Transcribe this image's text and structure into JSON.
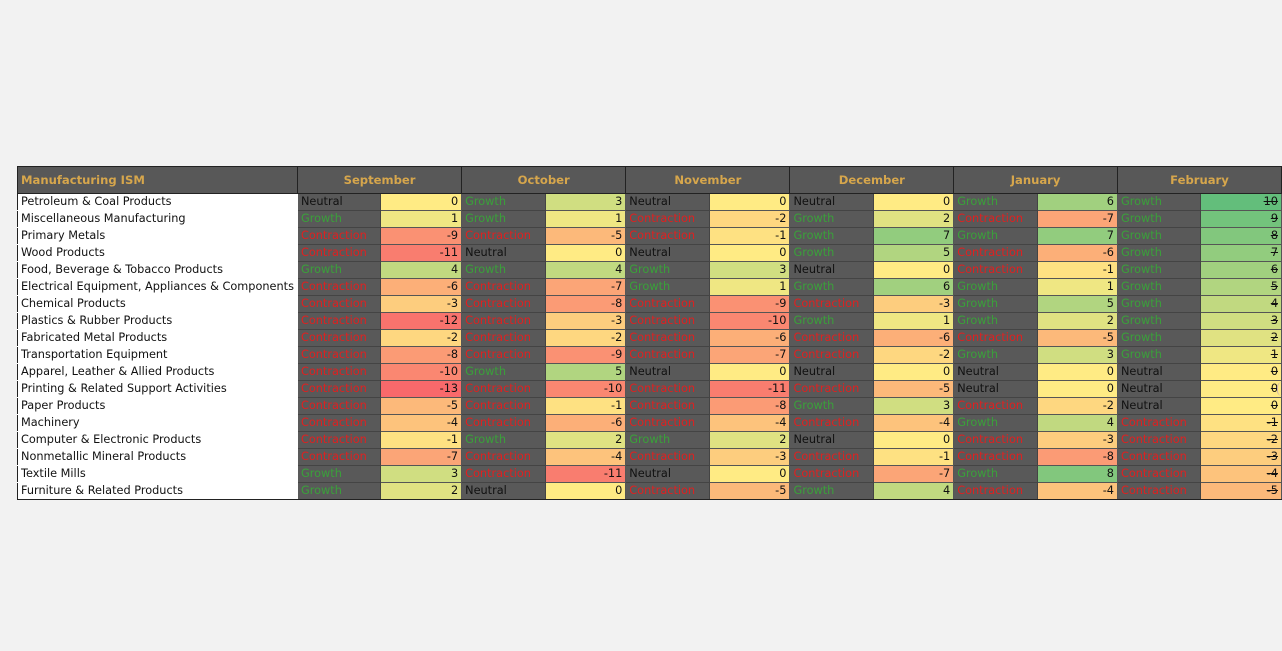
{
  "table": {
    "corner_header": "Manufacturing ISM",
    "months": [
      "September",
      "October",
      "November",
      "December",
      "January",
      "February"
    ],
    "rows": [
      {
        "name": "Petroleum & Coal Products",
        "cells": [
          [
            "Neutral",
            0
          ],
          [
            "Growth",
            3
          ],
          [
            "Neutral",
            0
          ],
          [
            "Neutral",
            0
          ],
          [
            "Growth",
            6
          ],
          [
            "Growth",
            10
          ]
        ]
      },
      {
        "name": "Miscellaneous Manufacturing",
        "cells": [
          [
            "Growth",
            1
          ],
          [
            "Growth",
            1
          ],
          [
            "Contraction",
            -2
          ],
          [
            "Growth",
            2
          ],
          [
            "Contraction",
            -7
          ],
          [
            "Growth",
            9
          ]
        ]
      },
      {
        "name": "Primary Metals",
        "cells": [
          [
            "Contraction",
            -9
          ],
          [
            "Contraction",
            -5
          ],
          [
            "Contraction",
            -1
          ],
          [
            "Growth",
            7
          ],
          [
            "Growth",
            7
          ],
          [
            "Growth",
            8
          ]
        ]
      },
      {
        "name": "Wood Products",
        "cells": [
          [
            "Contraction",
            -11
          ],
          [
            "Neutral",
            0
          ],
          [
            "Neutral",
            0
          ],
          [
            "Growth",
            5
          ],
          [
            "Contraction",
            -6
          ],
          [
            "Growth",
            7
          ]
        ]
      },
      {
        "name": "Food, Beverage & Tobacco Products",
        "cells": [
          [
            "Growth",
            4
          ],
          [
            "Growth",
            4
          ],
          [
            "Growth",
            3
          ],
          [
            "Neutral",
            0
          ],
          [
            "Contraction",
            -1
          ],
          [
            "Growth",
            6
          ]
        ]
      },
      {
        "name": "Electrical Equipment, Appliances & Components",
        "cells": [
          [
            "Contraction",
            -6
          ],
          [
            "Contraction",
            -7
          ],
          [
            "Growth",
            1
          ],
          [
            "Growth",
            6
          ],
          [
            "Growth",
            1
          ],
          [
            "Growth",
            5
          ]
        ]
      },
      {
        "name": "Chemical Products",
        "cells": [
          [
            "Contraction",
            -3
          ],
          [
            "Contraction",
            -8
          ],
          [
            "Contraction",
            -9
          ],
          [
            "Contraction",
            -3
          ],
          [
            "Growth",
            5
          ],
          [
            "Growth",
            4
          ]
        ]
      },
      {
        "name": "Plastics & Rubber Products",
        "cells": [
          [
            "Contraction",
            -12
          ],
          [
            "Contraction",
            -3
          ],
          [
            "Contraction",
            -10
          ],
          [
            "Growth",
            1
          ],
          [
            "Growth",
            2
          ],
          [
            "Growth",
            3
          ]
        ]
      },
      {
        "name": "Fabricated Metal Products",
        "cells": [
          [
            "Contraction",
            -2
          ],
          [
            "Contraction",
            -2
          ],
          [
            "Contraction",
            -6
          ],
          [
            "Contraction",
            -6
          ],
          [
            "Contraction",
            -5
          ],
          [
            "Growth",
            2
          ]
        ]
      },
      {
        "name": "Transportation Equipment",
        "cells": [
          [
            "Contraction",
            -8
          ],
          [
            "Contraction",
            -9
          ],
          [
            "Contraction",
            -7
          ],
          [
            "Contraction",
            -2
          ],
          [
            "Growth",
            3
          ],
          [
            "Growth",
            1
          ]
        ]
      },
      {
        "name": "Apparel, Leather & Allied Products",
        "cells": [
          [
            "Contraction",
            -10
          ],
          [
            "Growth",
            5
          ],
          [
            "Neutral",
            0
          ],
          [
            "Neutral",
            0
          ],
          [
            "Neutral",
            0
          ],
          [
            "Neutral",
            0
          ]
        ]
      },
      {
        "name": "Printing & Related Support Activities",
        "cells": [
          [
            "Contraction",
            -13
          ],
          [
            "Contraction",
            -10
          ],
          [
            "Contraction",
            -11
          ],
          [
            "Contraction",
            -5
          ],
          [
            "Neutral",
            0
          ],
          [
            "Neutral",
            0
          ]
        ]
      },
      {
        "name": "Paper Products",
        "cells": [
          [
            "Contraction",
            -5
          ],
          [
            "Contraction",
            -1
          ],
          [
            "Contraction",
            -8
          ],
          [
            "Growth",
            3
          ],
          [
            "Contraction",
            -2
          ],
          [
            "Neutral",
            0
          ]
        ]
      },
      {
        "name": "Machinery",
        "cells": [
          [
            "Contraction",
            -4
          ],
          [
            "Contraction",
            -6
          ],
          [
            "Contraction",
            -4
          ],
          [
            "Contraction",
            -4
          ],
          [
            "Growth",
            4
          ],
          [
            "Contraction",
            -1
          ]
        ]
      },
      {
        "name": "Computer & Electronic Products",
        "cells": [
          [
            "Contraction",
            -1
          ],
          [
            "Growth",
            2
          ],
          [
            "Growth",
            2
          ],
          [
            "Neutral",
            0
          ],
          [
            "Contraction",
            -3
          ],
          [
            "Contraction",
            -2
          ]
        ]
      },
      {
        "name": "Nonmetallic Mineral Products",
        "cells": [
          [
            "Contraction",
            -7
          ],
          [
            "Contraction",
            -4
          ],
          [
            "Contraction",
            -3
          ],
          [
            "Contraction",
            -1
          ],
          [
            "Contraction",
            -8
          ],
          [
            "Contraction",
            -3
          ]
        ]
      },
      {
        "name": "Textile Mills",
        "cells": [
          [
            "Growth",
            3
          ],
          [
            "Contraction",
            -11
          ],
          [
            "Neutral",
            0
          ],
          [
            "Contraction",
            -7
          ],
          [
            "Growth",
            8
          ],
          [
            "Contraction",
            -4
          ]
        ]
      },
      {
        "name": "Furniture & Related Products",
        "cells": [
          [
            "Growth",
            2
          ],
          [
            "Neutral",
            0
          ],
          [
            "Contraction",
            -5
          ],
          [
            "Growth",
            4
          ],
          [
            "Contraction",
            -4
          ],
          [
            "Contraction",
            -5
          ]
        ]
      }
    ]
  },
  "colors": {
    "header_bg": "#585858",
    "header_text": "#d6a64c",
    "status_bg": "#595959",
    "growth_text": "#3aa13a",
    "contraction_text": "#e02020",
    "scale_low": "#f8696b",
    "scale_mid": "#ffeb84",
    "scale_high": "#63be7b"
  },
  "strikethrough_column": "February"
}
